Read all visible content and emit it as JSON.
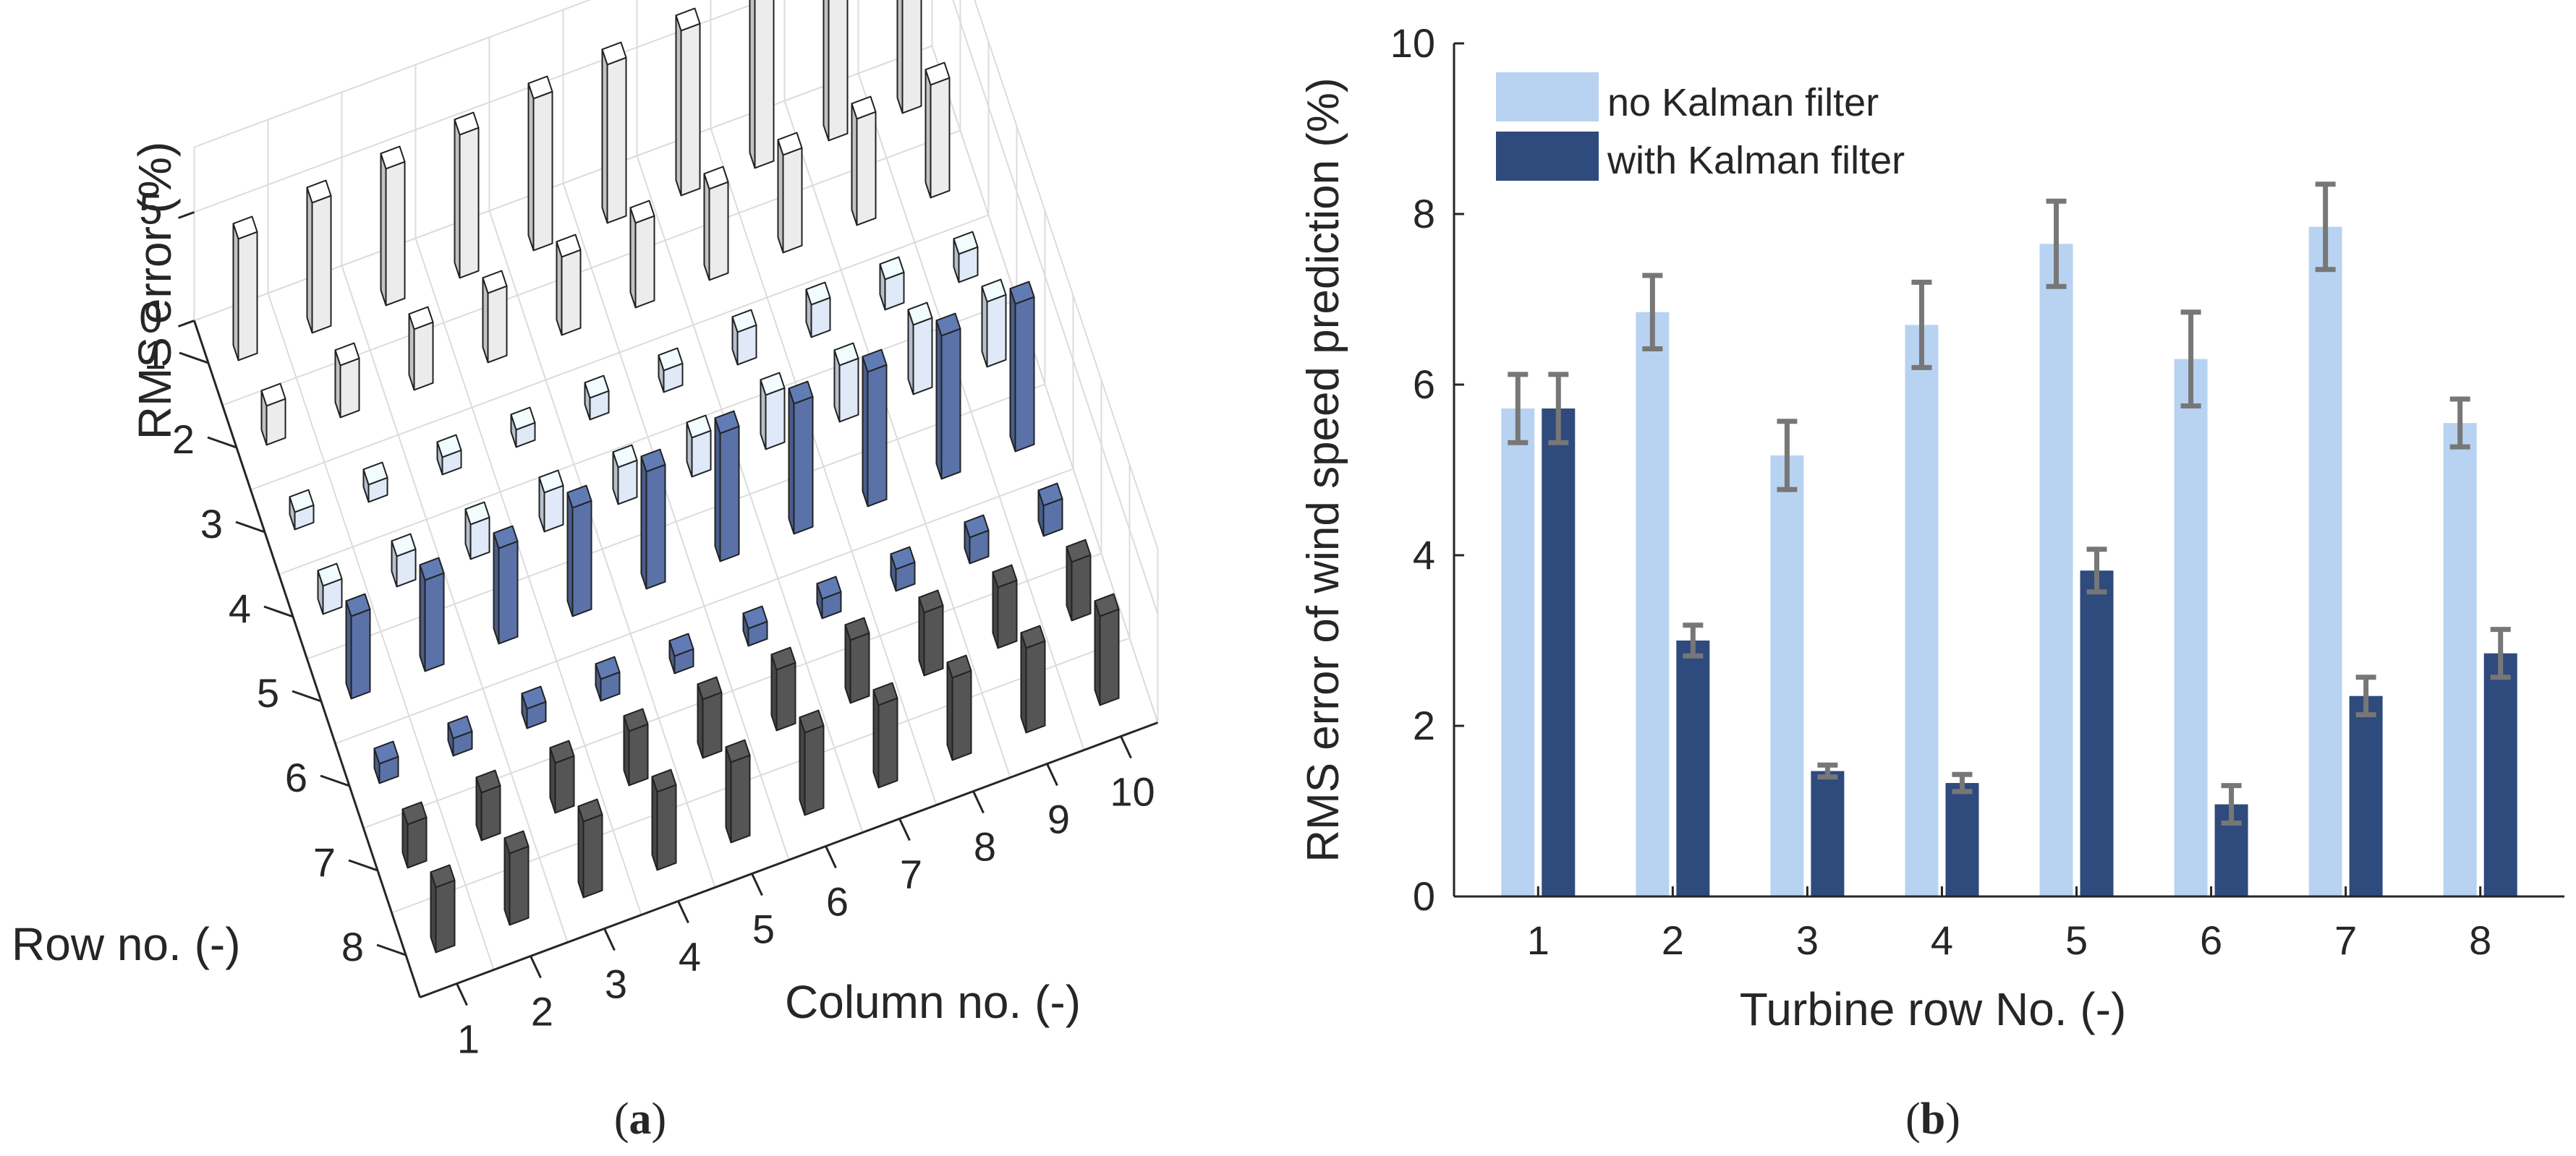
{
  "chart_data": [
    {
      "panel": "a",
      "type": "bar3d",
      "zlabel": "RMS error (%)",
      "xlabel": "Column no. (-)",
      "ylabel": "Row no. (-)",
      "z_ticks": [
        "0",
        "5"
      ],
      "row_ticks": [
        "1",
        "2",
        "3",
        "4",
        "5",
        "6",
        "7",
        "8"
      ],
      "column_ticks": [
        "1",
        "2",
        "3",
        "4",
        "5",
        "6",
        "7",
        "8",
        "9",
        "10"
      ],
      "zlim": [
        0,
        8
      ],
      "row_colors": [
        "#ececec",
        "#ececec",
        "#dfe9f7",
        "#dfe9f7",
        "#5a72a8",
        "#5a72a8",
        "#555555",
        "#555555"
      ],
      "values": [
        [
          5.6,
          6.0,
          6.3,
          6.6,
          7.0,
          7.3,
          7.6,
          7.9,
          8.2,
          8.4
        ],
        [
          1.8,
          2.4,
          2.8,
          3.2,
          3.6,
          3.9,
          4.2,
          4.5,
          4.9,
          5.2
        ],
        [
          0.8,
          0.8,
          0.8,
          0.8,
          1.0,
          1.0,
          1.5,
          1.5,
          1.4,
          1.3
        ],
        [
          1.3,
          1.4,
          1.6,
          1.8,
          1.7,
          1.8,
          2.5,
          2.6,
          3.2,
          3.0
        ],
        [
          3.8,
          4.2,
          4.4,
          5.0,
          5.4,
          5.9,
          6.0,
          6.2,
          6.6,
          6.8
        ],
        [
          0.9,
          0.8,
          0.9,
          1.0,
          0.8,
          0.8,
          0.9,
          1.0,
          1.2,
          1.4
        ],
        [
          2.0,
          2.2,
          2.3,
          2.5,
          2.7,
          2.8,
          2.9,
          2.9,
          2.8,
          2.7
        ],
        [
          3.0,
          3.3,
          3.5,
          3.6,
          3.7,
          3.8,
          3.8,
          3.8,
          3.9,
          4.1
        ]
      ],
      "caption_label": "a"
    },
    {
      "panel": "b",
      "type": "bar",
      "xlabel": "Turbine row No. (-)",
      "ylabel": "RMS error of wind speed prediction (%)",
      "categories": [
        "1",
        "2",
        "3",
        "4",
        "5",
        "6",
        "7",
        "8"
      ],
      "ylim": [
        0,
        10
      ],
      "y_ticks": [
        "0",
        "2",
        "4",
        "6",
        "8",
        "10"
      ],
      "grid": false,
      "legend_position": "top-left",
      "series": [
        {
          "name": "no Kalman filter",
          "color": "#b8d3f1",
          "values": [
            5.72,
            6.85,
            5.17,
            6.7,
            7.65,
            6.3,
            7.85,
            5.55
          ],
          "errors": [
            0.4,
            0.43,
            0.4,
            0.5,
            0.5,
            0.55,
            0.5,
            0.28
          ]
        },
        {
          "name": "with Kalman filter",
          "color": "#2f4a7c",
          "values": [
            5.72,
            3.0,
            1.47,
            1.33,
            3.82,
            1.08,
            2.35,
            2.85
          ],
          "errors": [
            0.4,
            0.18,
            0.07,
            0.1,
            0.25,
            0.22,
            0.22,
            0.28
          ]
        }
      ],
      "error_bar_color": "#777777",
      "caption_label": "b"
    }
  ]
}
